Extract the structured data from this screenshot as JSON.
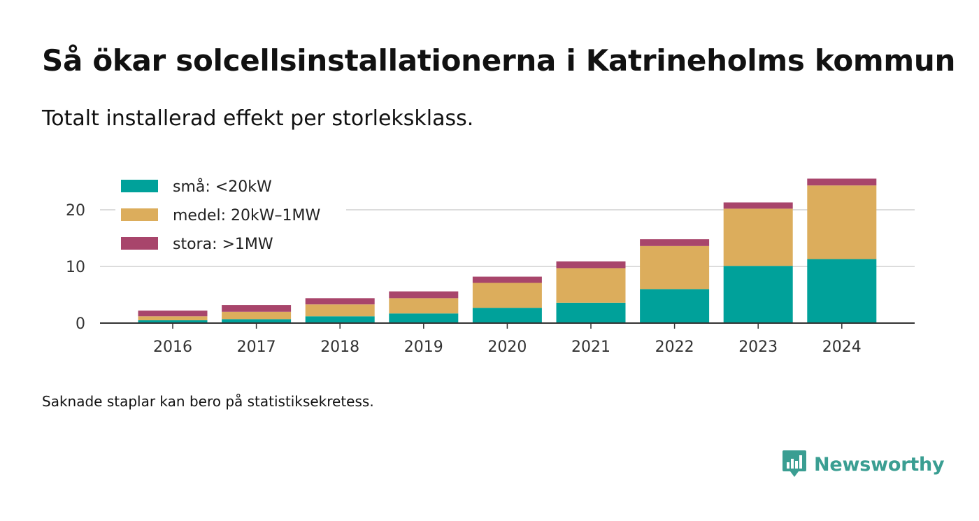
{
  "title": "Så ökar solcellsinstallationerna i Katrineholms kommun",
  "subtitle": "Totalt installerad effekt per storleksklass.",
  "footnote": "Saknade staplar kan bero på statistiksekretess.",
  "brand": {
    "name": "Newsworthy",
    "color": "#3a9e92"
  },
  "chart_data": {
    "type": "bar",
    "stacked": true,
    "categories": [
      "2016",
      "2017",
      "2018",
      "2019",
      "2020",
      "2021",
      "2022",
      "2023",
      "2024"
    ],
    "series": [
      {
        "name": "små: <20kW",
        "color": "#00a19a",
        "values": [
          0.5,
          0.7,
          1.2,
          1.7,
          2.7,
          3.6,
          6.0,
          10.1,
          11.3
        ]
      },
      {
        "name": "medel: 20kW–1MW",
        "color": "#dcad5c",
        "values": [
          0.7,
          1.3,
          2.1,
          2.7,
          4.4,
          6.1,
          7.6,
          10.1,
          13.0
        ]
      },
      {
        "name": "stora: >1MW",
        "color": "#a8456b",
        "values": [
          1.0,
          1.2,
          1.1,
          1.2,
          1.1,
          1.2,
          1.2,
          1.1,
          1.2
        ]
      }
    ],
    "yticks": [
      0,
      10,
      20
    ],
    "ylim": [
      0,
      26
    ],
    "grid": true,
    "legend_position": "top-left"
  }
}
